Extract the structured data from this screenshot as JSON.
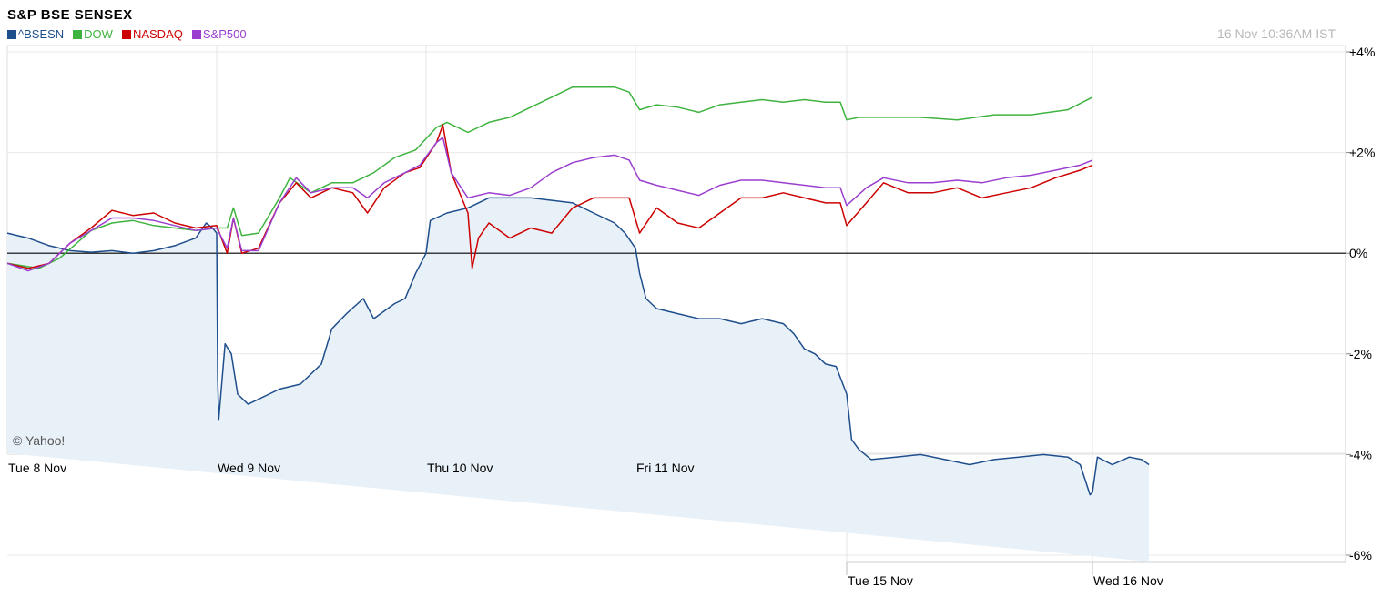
{
  "chart_data": {
    "type": "line",
    "title": "S&P BSE SENSEX",
    "timestamp": "16 Nov 10:36AM IST",
    "watermark": "© Yahoo!",
    "ylim": [
      -6,
      4
    ],
    "y_ticks": [
      "+4%",
      "+2%",
      "0%",
      "-2%",
      "-4%",
      "-6%"
    ],
    "y_tick_values": [
      4,
      2,
      0,
      -2,
      -4,
      -6
    ],
    "sessions_top": [
      "Tue  8 Nov",
      "Wed  9 Nov",
      "Thu 10 Nov",
      "Fri 11 Nov"
    ],
    "sessions_bottom": [
      "Tue 15 Nov",
      "Wed 16 Nov"
    ],
    "grid": true,
    "legend_position": "top-left",
    "series": [
      {
        "name": "^BSESN",
        "color": "#1f4e8c",
        "fill": "#e9f1f8",
        "points": [
          [
            0,
            0.4
          ],
          [
            0.1,
            0.3
          ],
          [
            0.2,
            0.15
          ],
          [
            0.3,
            0.05
          ],
          [
            0.4,
            0.02
          ],
          [
            0.5,
            0.05
          ],
          [
            0.6,
            0.0
          ],
          [
            0.7,
            0.05
          ],
          [
            0.8,
            0.15
          ],
          [
            0.9,
            0.3
          ],
          [
            0.95,
            0.6
          ],
          [
            0.98,
            0.5
          ],
          [
            1.0,
            0.4
          ],
          [
            1.005,
            -2.5
          ],
          [
            1.01,
            -3.3
          ],
          [
            1.04,
            -1.8
          ],
          [
            1.07,
            -2.0
          ],
          [
            1.1,
            -2.8
          ],
          [
            1.15,
            -3.0
          ],
          [
            1.2,
            -2.9
          ],
          [
            1.3,
            -2.7
          ],
          [
            1.4,
            -2.6
          ],
          [
            1.5,
            -2.2
          ],
          [
            1.55,
            -1.5
          ],
          [
            1.62,
            -1.2
          ],
          [
            1.7,
            -0.9
          ],
          [
            1.75,
            -1.3
          ],
          [
            1.85,
            -1.0
          ],
          [
            1.9,
            -0.9
          ],
          [
            1.95,
            -0.4
          ],
          [
            2.0,
            0.0
          ],
          [
            2.02,
            0.65
          ],
          [
            2.1,
            0.8
          ],
          [
            2.2,
            0.9
          ],
          [
            2.3,
            1.1
          ],
          [
            2.4,
            1.1
          ],
          [
            2.5,
            1.1
          ],
          [
            2.6,
            1.05
          ],
          [
            2.7,
            1.0
          ],
          [
            2.8,
            0.8
          ],
          [
            2.9,
            0.6
          ],
          [
            2.95,
            0.4
          ],
          [
            3.0,
            0.1
          ],
          [
            3.02,
            -0.4
          ],
          [
            3.05,
            -0.9
          ],
          [
            3.1,
            -1.1
          ],
          [
            3.2,
            -1.2
          ],
          [
            3.3,
            -1.3
          ],
          [
            3.4,
            -1.3
          ],
          [
            3.5,
            -1.4
          ],
          [
            3.6,
            -1.3
          ],
          [
            3.7,
            -1.4
          ],
          [
            3.75,
            -1.6
          ],
          [
            3.8,
            -1.9
          ],
          [
            3.85,
            -2.0
          ],
          [
            3.9,
            -2.2
          ],
          [
            3.95,
            -2.25
          ],
          [
            4.0,
            -2.8
          ],
          [
            4.02,
            -3.7
          ],
          [
            4.05,
            -3.9
          ],
          [
            4.1,
            -4.1
          ],
          [
            4.2,
            -4.05
          ],
          [
            4.3,
            -4.0
          ],
          [
            4.4,
            -4.1
          ],
          [
            4.5,
            -4.2
          ],
          [
            4.6,
            -4.1
          ],
          [
            4.7,
            -4.05
          ],
          [
            4.8,
            -4.0
          ],
          [
            4.9,
            -4.05
          ],
          [
            4.95,
            -4.2
          ],
          [
            4.99,
            -4.8
          ],
          [
            5.0,
            -4.75
          ],
          [
            5.02,
            -4.05
          ],
          [
            5.08,
            -4.2
          ],
          [
            5.15,
            -4.05
          ],
          [
            5.2,
            -4.1
          ],
          [
            5.23,
            -4.2
          ]
        ]
      },
      {
        "name": "DOW",
        "color": "#3fb33f",
        "points": [
          [
            0,
            -0.2
          ],
          [
            0.15,
            -0.3
          ],
          [
            0.25,
            -0.1
          ],
          [
            0.4,
            0.45
          ],
          [
            0.5,
            0.6
          ],
          [
            0.6,
            0.65
          ],
          [
            0.7,
            0.55
          ],
          [
            0.8,
            0.5
          ],
          [
            0.9,
            0.45
          ],
          [
            1.0,
            0.5
          ],
          [
            1.05,
            0.5
          ],
          [
            1.08,
            0.9
          ],
          [
            1.12,
            0.35
          ],
          [
            1.2,
            0.4
          ],
          [
            1.3,
            1.1
          ],
          [
            1.35,
            1.5
          ],
          [
            1.45,
            1.2
          ],
          [
            1.55,
            1.4
          ],
          [
            1.65,
            1.4
          ],
          [
            1.75,
            1.6
          ],
          [
            1.85,
            1.9
          ],
          [
            1.95,
            2.05
          ],
          [
            2.05,
            2.5
          ],
          [
            2.1,
            2.6
          ],
          [
            2.2,
            2.4
          ],
          [
            2.3,
            2.6
          ],
          [
            2.4,
            2.7
          ],
          [
            2.5,
            2.9
          ],
          [
            2.6,
            3.1
          ],
          [
            2.7,
            3.3
          ],
          [
            2.8,
            3.3
          ],
          [
            2.9,
            3.3
          ],
          [
            2.97,
            3.2
          ],
          [
            3.02,
            2.85
          ],
          [
            3.1,
            2.95
          ],
          [
            3.2,
            2.9
          ],
          [
            3.3,
            2.8
          ],
          [
            3.4,
            2.95
          ],
          [
            3.5,
            3.0
          ],
          [
            3.6,
            3.05
          ],
          [
            3.7,
            3.0
          ],
          [
            3.8,
            3.05
          ],
          [
            3.9,
            3.0
          ],
          [
            3.97,
            3.0
          ],
          [
            4.0,
            2.65
          ],
          [
            4.05,
            2.7
          ],
          [
            4.15,
            2.7
          ],
          [
            4.3,
            2.7
          ],
          [
            4.45,
            2.65
          ],
          [
            4.6,
            2.75
          ],
          [
            4.75,
            2.75
          ],
          [
            4.9,
            2.85
          ],
          [
            5.0,
            3.1
          ]
        ]
      },
      {
        "name": "NASDAQ",
        "color": "#cc0000",
        "points": [
          [
            0,
            -0.2
          ],
          [
            0.1,
            -0.3
          ],
          [
            0.2,
            -0.2
          ],
          [
            0.3,
            0.2
          ],
          [
            0.4,
            0.5
          ],
          [
            0.5,
            0.85
          ],
          [
            0.6,
            0.75
          ],
          [
            0.7,
            0.8
          ],
          [
            0.8,
            0.6
          ],
          [
            0.9,
            0.5
          ],
          [
            1.0,
            0.55
          ],
          [
            1.05,
            0.0
          ],
          [
            1.08,
            0.7
          ],
          [
            1.12,
            0.0
          ],
          [
            1.2,
            0.1
          ],
          [
            1.3,
            1.0
          ],
          [
            1.38,
            1.4
          ],
          [
            1.45,
            1.1
          ],
          [
            1.55,
            1.3
          ],
          [
            1.65,
            1.2
          ],
          [
            1.72,
            0.8
          ],
          [
            1.8,
            1.3
          ],
          [
            1.9,
            1.6
          ],
          [
            1.97,
            1.7
          ],
          [
            2.05,
            2.2
          ],
          [
            2.08,
            2.55
          ],
          [
            2.12,
            1.6
          ],
          [
            2.2,
            0.8
          ],
          [
            2.22,
            -0.3
          ],
          [
            2.25,
            0.3
          ],
          [
            2.3,
            0.6
          ],
          [
            2.4,
            0.3
          ],
          [
            2.5,
            0.5
          ],
          [
            2.6,
            0.4
          ],
          [
            2.7,
            0.9
          ],
          [
            2.8,
            1.1
          ],
          [
            2.9,
            1.1
          ],
          [
            2.97,
            1.1
          ],
          [
            3.02,
            0.4
          ],
          [
            3.1,
            0.9
          ],
          [
            3.2,
            0.6
          ],
          [
            3.3,
            0.5
          ],
          [
            3.4,
            0.8
          ],
          [
            3.5,
            1.1
          ],
          [
            3.6,
            1.1
          ],
          [
            3.7,
            1.2
          ],
          [
            3.8,
            1.1
          ],
          [
            3.9,
            1.0
          ],
          [
            3.97,
            1.0
          ],
          [
            4.0,
            0.55
          ],
          [
            4.08,
            1.0
          ],
          [
            4.15,
            1.4
          ],
          [
            4.25,
            1.2
          ],
          [
            4.35,
            1.2
          ],
          [
            4.45,
            1.3
          ],
          [
            4.55,
            1.1
          ],
          [
            4.65,
            1.2
          ],
          [
            4.75,
            1.3
          ],
          [
            4.85,
            1.5
          ],
          [
            4.95,
            1.65
          ],
          [
            5.0,
            1.75
          ]
        ]
      },
      {
        "name": "S&P500",
        "color": "#9a3fcf",
        "points": [
          [
            0,
            -0.2
          ],
          [
            0.1,
            -0.35
          ],
          [
            0.2,
            -0.2
          ],
          [
            0.3,
            0.2
          ],
          [
            0.4,
            0.45
          ],
          [
            0.5,
            0.7
          ],
          [
            0.6,
            0.7
          ],
          [
            0.7,
            0.65
          ],
          [
            0.8,
            0.55
          ],
          [
            0.9,
            0.45
          ],
          [
            1.0,
            0.5
          ],
          [
            1.05,
            0.1
          ],
          [
            1.08,
            0.7
          ],
          [
            1.12,
            0.05
          ],
          [
            1.2,
            0.05
          ],
          [
            1.3,
            1.0
          ],
          [
            1.38,
            1.5
          ],
          [
            1.45,
            1.2
          ],
          [
            1.55,
            1.3
          ],
          [
            1.65,
            1.3
          ],
          [
            1.72,
            1.1
          ],
          [
            1.8,
            1.4
          ],
          [
            1.9,
            1.6
          ],
          [
            1.97,
            1.75
          ],
          [
            2.05,
            2.2
          ],
          [
            2.08,
            2.3
          ],
          [
            2.12,
            1.6
          ],
          [
            2.2,
            1.1
          ],
          [
            2.3,
            1.2
          ],
          [
            2.4,
            1.15
          ],
          [
            2.5,
            1.3
          ],
          [
            2.6,
            1.6
          ],
          [
            2.7,
            1.8
          ],
          [
            2.8,
            1.9
          ],
          [
            2.9,
            1.95
          ],
          [
            2.97,
            1.85
          ],
          [
            3.02,
            1.45
          ],
          [
            3.1,
            1.35
          ],
          [
            3.2,
            1.25
          ],
          [
            3.3,
            1.15
          ],
          [
            3.4,
            1.35
          ],
          [
            3.5,
            1.45
          ],
          [
            3.6,
            1.45
          ],
          [
            3.7,
            1.4
          ],
          [
            3.8,
            1.35
          ],
          [
            3.9,
            1.3
          ],
          [
            3.97,
            1.3
          ],
          [
            4.0,
            0.95
          ],
          [
            4.08,
            1.3
          ],
          [
            4.15,
            1.5
          ],
          [
            4.25,
            1.4
          ],
          [
            4.35,
            1.4
          ],
          [
            4.45,
            1.45
          ],
          [
            4.55,
            1.4
          ],
          [
            4.65,
            1.5
          ],
          [
            4.75,
            1.55
          ],
          [
            4.85,
            1.65
          ],
          [
            4.95,
            1.75
          ],
          [
            5.0,
            1.85
          ]
        ]
      }
    ]
  }
}
